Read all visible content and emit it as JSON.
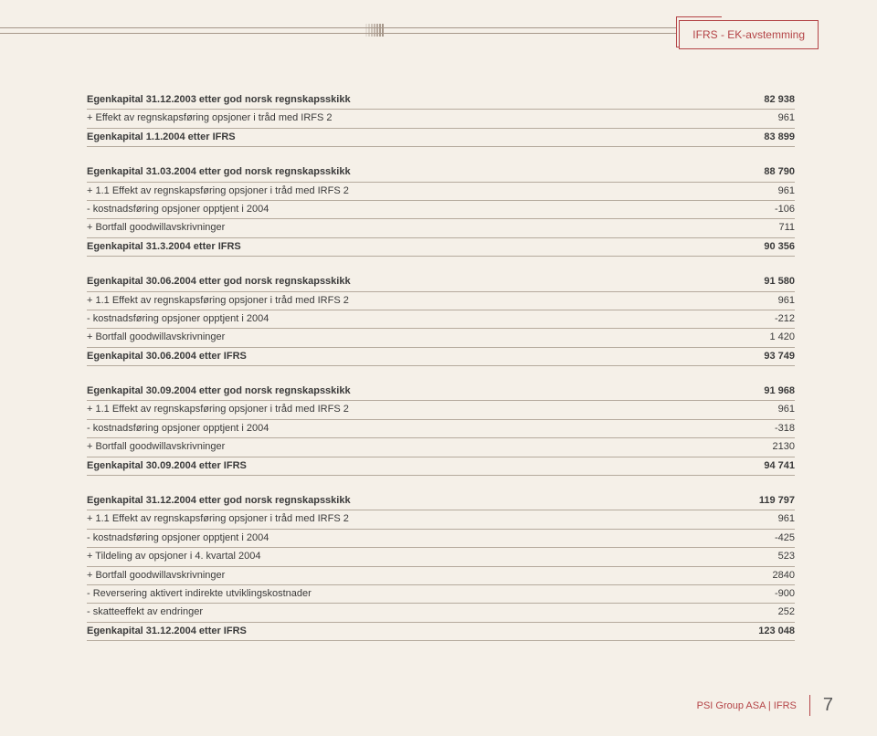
{
  "header": {
    "title": "IFRS - EK-avstemming"
  },
  "blocks": [
    {
      "rows": [
        {
          "label": "Egenkapital 31.12.2003 etter god norsk regnskapsskikk",
          "value": "82 938",
          "bold": true
        },
        {
          "label": "+ Effekt av regnskapsføring opsjoner i tråd med IRFS 2",
          "value": "961",
          "bold": false
        },
        {
          "label": "Egenkapital 1.1.2004 etter IFRS",
          "value": "83 899",
          "bold": true
        }
      ]
    },
    {
      "rows": [
        {
          "label": "Egenkapital 31.03.2004 etter god norsk regnskapsskikk",
          "value": "88 790",
          "bold": true
        },
        {
          "label": "+ 1.1 Effekt av regnskapsføring opsjoner i tråd med IRFS 2",
          "value": "961",
          "bold": false
        },
        {
          "label": "- kostnadsføring opsjoner opptjent i 2004",
          "value": "-106",
          "bold": false
        },
        {
          "label": "+ Bortfall goodwillavskrivninger",
          "value": "711",
          "bold": false
        },
        {
          "label": "Egenkapital 31.3.2004 etter IFRS",
          "value": "90 356",
          "bold": true
        }
      ]
    },
    {
      "rows": [
        {
          "label": "Egenkapital 30.06.2004 etter god norsk regnskapsskikk",
          "value": "91 580",
          "bold": true
        },
        {
          "label": "+ 1.1 Effekt av regnskapsføring opsjoner i tråd med IRFS 2",
          "value": "961",
          "bold": false
        },
        {
          "label": "- kostnadsføring opsjoner opptjent i 2004",
          "value": "-212",
          "bold": false
        },
        {
          "label": "+ Bortfall goodwillavskrivninger",
          "value": "1 420",
          "bold": false
        },
        {
          "label": "Egenkapital 30.06.2004 etter IFRS",
          "value": "93 749",
          "bold": true
        }
      ]
    },
    {
      "rows": [
        {
          "label": "Egenkapital 30.09.2004 etter god norsk regnskapsskikk",
          "value": "91 968",
          "bold": true
        },
        {
          "label": "+ 1.1 Effekt av regnskapsføring opsjoner i tråd med IRFS 2",
          "value": "961",
          "bold": false
        },
        {
          "label": "- kostnadsføring opsjoner opptjent i 2004",
          "value": "-318",
          "bold": false
        },
        {
          "label": "+ Bortfall goodwillavskrivninger",
          "value": "2130",
          "bold": false
        },
        {
          "label": "Egenkapital 30.09.2004 etter IFRS",
          "value": "94 741",
          "bold": true
        }
      ]
    },
    {
      "rows": [
        {
          "label": "Egenkapital 31.12.2004 etter god norsk regnskapsskikk",
          "value": "119 797",
          "bold": true
        },
        {
          "label": "+ 1.1 Effekt av regnskapsføring opsjoner i tråd med IRFS 2",
          "value": "961",
          "bold": false
        },
        {
          "label": "- kostnadsføring opsjoner opptjent i 2004",
          "value": "-425",
          "bold": false
        },
        {
          "label": "+ Tildeling av opsjoner i 4. kvartal 2004",
          "value": "523",
          "bold": false
        },
        {
          "label": "+ Bortfall goodwillavskrivninger",
          "value": "2840",
          "bold": false
        },
        {
          "label": "- Reversering aktivert indirekte utviklingskostnader",
          "value": "-900",
          "bold": false
        },
        {
          "label": "- skatteeffekt av endringer",
          "value": "252",
          "bold": false
        },
        {
          "label": "Egenkapital 31.12.2004 etter IFRS",
          "value": "123 048",
          "bold": true
        }
      ]
    }
  ],
  "footer": {
    "company": "PSI Group ASA  |  IFRS",
    "page": "7"
  }
}
